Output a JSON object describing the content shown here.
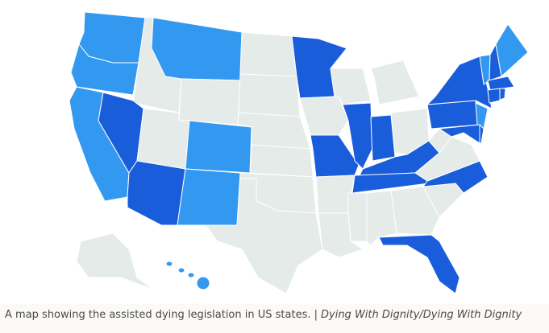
{
  "caption": {
    "text": "A map showing the assisted dying legislation in US states. |",
    "credit": "Dying With Dignity/Dying With Dignity"
  }
}
